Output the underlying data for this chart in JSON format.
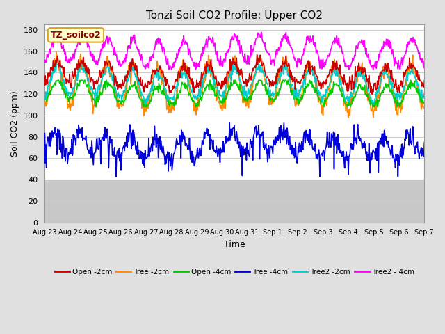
{
  "title": "Tonzi Soil CO2 Profile: Upper CO2",
  "xlabel": "Time",
  "ylabel": "Soil CO2 (ppm)",
  "ylim": [
    0,
    185
  ],
  "yticks": [
    0,
    20,
    40,
    60,
    80,
    100,
    120,
    140,
    160,
    180
  ],
  "annotation": "TZ_soilco2",
  "annotation_color": "#8B0000",
  "annotation_bg": "#FFFFCC",
  "annotation_border": "#DAA520",
  "background_color": "#E0E0E0",
  "plot_bg": "#FFFFFF",
  "grid_color": "#CCCCCC",
  "series": {
    "Open -2cm": {
      "color": "#CC0000",
      "lw": 1.2
    },
    "Tree -2cm": {
      "color": "#FF8800",
      "lw": 1.2
    },
    "Open -4cm": {
      "color": "#00CC00",
      "lw": 1.2
    },
    "Tree -4cm": {
      "color": "#0000DD",
      "lw": 1.2
    },
    "Tree2 -2cm": {
      "color": "#00CCCC",
      "lw": 1.2
    },
    "Tree2 - 4cm": {
      "color": "#FF00FF",
      "lw": 1.2
    }
  },
  "xtick_labels": [
    "Aug 23",
    "Aug 24",
    "Aug 25",
    "Aug 26",
    "Aug 27",
    "Aug 28",
    "Aug 29",
    "Aug 30",
    "Aug 31",
    "Sep 1",
    "Sep 2",
    "Sep 3",
    "Sep 4",
    "Sep 5",
    "Sep 6",
    "Sep 7"
  ],
  "n_days": 15
}
